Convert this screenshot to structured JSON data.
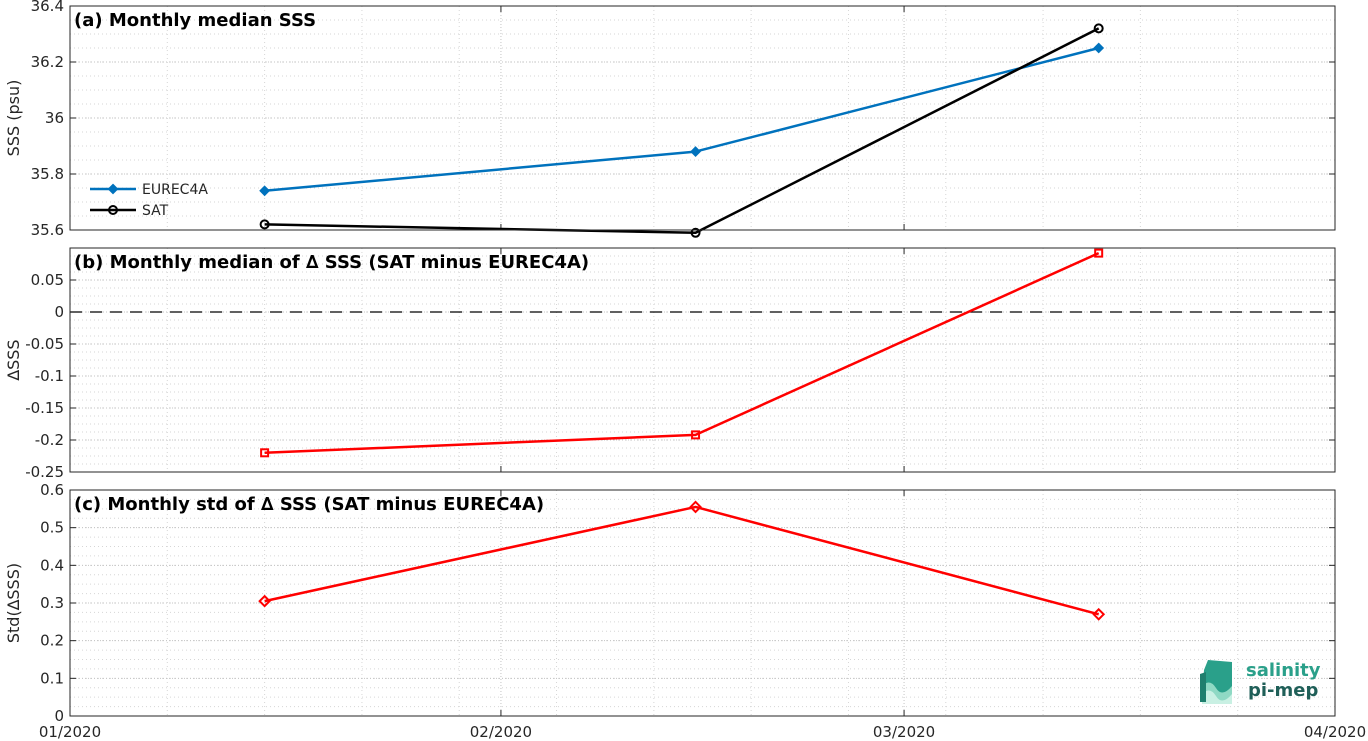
{
  "chart_data": [
    {
      "type": "line",
      "title": "(a) Monthly median SSS",
      "xlabel": "",
      "ylabel": "SSS (psu)",
      "x_tick_labels": [
        "01/2020",
        "02/2020",
        "03/2020",
        "04/2020"
      ],
      "xlim": [
        "2020-01-01",
        "2020-04-01"
      ],
      "ylim": [
        35.6,
        36.4
      ],
      "y_ticks": [
        35.6,
        35.8,
        36,
        36.2,
        36.4
      ],
      "y_tick_labels": [
        "35.6",
        "35.8",
        "36",
        "36.2",
        "36.4"
      ],
      "grid": "on (major and minor dotted)",
      "legend_placement": "left",
      "x": [
        "2020-01-15",
        "2020-02-15",
        "2020-03-15"
      ],
      "series": [
        {
          "name": "EUREC4A",
          "values": [
            35.74,
            35.88,
            36.25
          ],
          "color": "#0072BD",
          "marker": "diamond-filled"
        },
        {
          "name": "SAT",
          "values": [
            35.62,
            35.59,
            36.32
          ],
          "color": "#000000",
          "marker": "circle"
        }
      ]
    },
    {
      "type": "line",
      "title": "(b) Monthly median of ∆ SSS (SAT minus EUREC4A)",
      "xlabel": "",
      "ylabel": "∆SSS",
      "xlim": [
        "2020-01-01",
        "2020-04-01"
      ],
      "ylim": [
        -0.25,
        0.1
      ],
      "y_ticks": [
        -0.25,
        -0.2,
        -0.15,
        -0.1,
        -0.05,
        0,
        0.05
      ],
      "y_tick_labels": [
        "-0.25",
        "-0.2",
        "-0.15",
        "-0.1",
        "-0.05",
        "0",
        "0.05"
      ],
      "reference_line": 0,
      "grid": "on (major and minor dotted)",
      "x": [
        "2020-01-15",
        "2020-02-15",
        "2020-03-15"
      ],
      "series": [
        {
          "values": [
            -0.22,
            -0.192,
            0.092
          ],
          "color": "#FF0000",
          "marker": "square"
        }
      ]
    },
    {
      "type": "line",
      "title": "(c) Monthly std of ∆ SSS (SAT minus EUREC4A)",
      "xlabel": "",
      "ylabel": "Std(∆SSS)",
      "xlim": [
        "2020-01-01",
        "2020-04-01"
      ],
      "ylim": [
        0,
        0.6
      ],
      "y_ticks": [
        0,
        0.1,
        0.2,
        0.3,
        0.4,
        0.5,
        0.6
      ],
      "y_tick_labels": [
        "0",
        "0.1",
        "0.2",
        "0.3",
        "0.4",
        "0.5",
        "0.6"
      ],
      "grid": "on (major and minor dotted)",
      "x": [
        "2020-01-15",
        "2020-02-15",
        "2020-03-15"
      ],
      "series": [
        {
          "values": [
            0.305,
            0.555,
            0.27
          ],
          "color": "#FF0000",
          "marker": "diamond"
        }
      ]
    }
  ],
  "logo": {
    "line1": "salinity",
    "line2": "pi-mep"
  }
}
